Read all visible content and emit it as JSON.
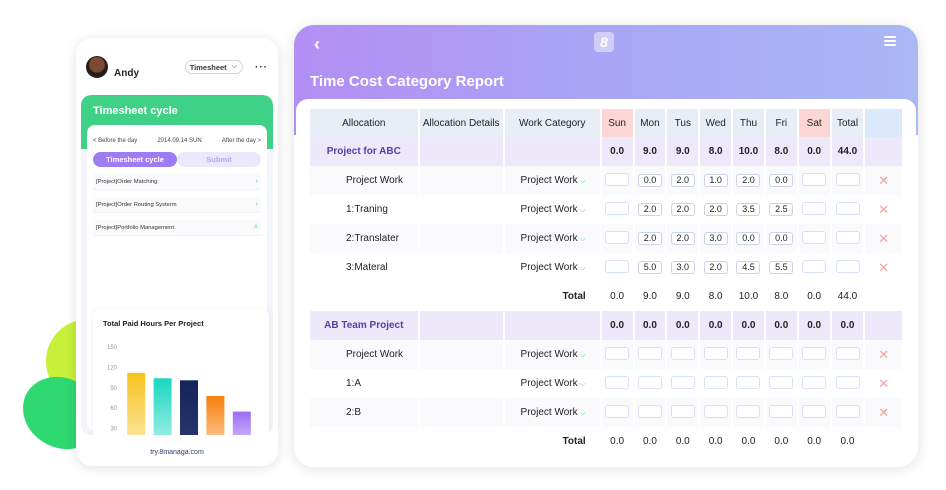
{
  "phone": {
    "user_name": "Andy",
    "selector": "Timesheet",
    "cycle_title": "Timesheet cycle",
    "prev_day": "< Before the day",
    "current_date": "2014.09.14 SUN",
    "next_day": "After the day >",
    "tabs": [
      "Timesheet cycle",
      "Submit"
    ],
    "projects": [
      {
        "label": "[Project]Order Matching",
        "arrow": "›"
      },
      {
        "label": "[Project]Order Routing Systerm",
        "arrow": "›"
      },
      {
        "label": "[Project]Portfolio Management.",
        "arrow": "˄"
      }
    ],
    "footer": "try.8managa.com"
  },
  "chart_data": {
    "type": "bar",
    "title": "Total Paid Hours Per Project",
    "yticks": [
      "150",
      "120",
      "90",
      "60",
      "30",
      "0"
    ],
    "ylim": [
      0,
      150
    ],
    "values": [
      112,
      104,
      101,
      78,
      55
    ],
    "colors": [
      "#f7c21c",
      "#19d7c1",
      "#13235c",
      "#f77f0a",
      "#9b6cf5"
    ]
  },
  "report": {
    "title": "Time Cost Category Report",
    "headers": [
      "Allocation",
      "Allocation Details",
      "Work Category",
      "Sun",
      "Mon",
      "Tus",
      "Wed",
      "Thu",
      "Fri",
      "Sat",
      "Total"
    ],
    "groups": [
      {
        "name": "Project for ABC",
        "totals": [
          "0.0",
          "9.0",
          "9.0",
          "8.0",
          "10.0",
          "8.0",
          "0.0",
          "44.0"
        ],
        "rows": [
          {
            "name": "Project Work",
            "category": "Project Work",
            "days": [
              "",
              "0.0",
              "2.0",
              "1.0",
              "2.0",
              "0.0",
              ""
            ]
          },
          {
            "name": "1:Traning",
            "category": "Project Work",
            "days": [
              "",
              "2.0",
              "2.0",
              "2.0",
              "3.5",
              "2.5",
              ""
            ]
          },
          {
            "name": "2:Translater",
            "category": "Project Work",
            "days": [
              "",
              "2.0",
              "2.0",
              "3.0",
              "0.0",
              "0.0",
              ""
            ]
          },
          {
            "name": "3:Materal",
            "category": "Project Work",
            "days": [
              "",
              "5.0",
              "3.0",
              "2.0",
              "4.5",
              "5.5",
              ""
            ]
          }
        ],
        "footer_label": "Total",
        "footer": [
          "0.0",
          "9.0",
          "9.0",
          "8.0",
          "10.0",
          "8.0",
          "0.0",
          "44.0"
        ]
      },
      {
        "name": "AB Team Project",
        "totals": [
          "0.0",
          "0.0",
          "0.0",
          "0.0",
          "0.0",
          "0.0",
          "0.0",
          "0.0"
        ],
        "rows": [
          {
            "name": "Project Work",
            "category": "Project Work",
            "days": [
              "",
              "",
              "",
              "",
              "",
              "",
              ""
            ]
          },
          {
            "name": "1:A",
            "category": "Project Work",
            "days": [
              "",
              "",
              "",
              "",
              "",
              "",
              ""
            ]
          },
          {
            "name": "2:B",
            "category": "Project Work",
            "days": [
              "",
              "",
              "",
              "",
              "",
              "",
              ""
            ]
          }
        ],
        "footer_label": "Total",
        "footer": [
          "0.0",
          "0.0",
          "0.0",
          "0.0",
          "0.0",
          "0.0",
          "0.0",
          "0.0"
        ]
      }
    ]
  }
}
